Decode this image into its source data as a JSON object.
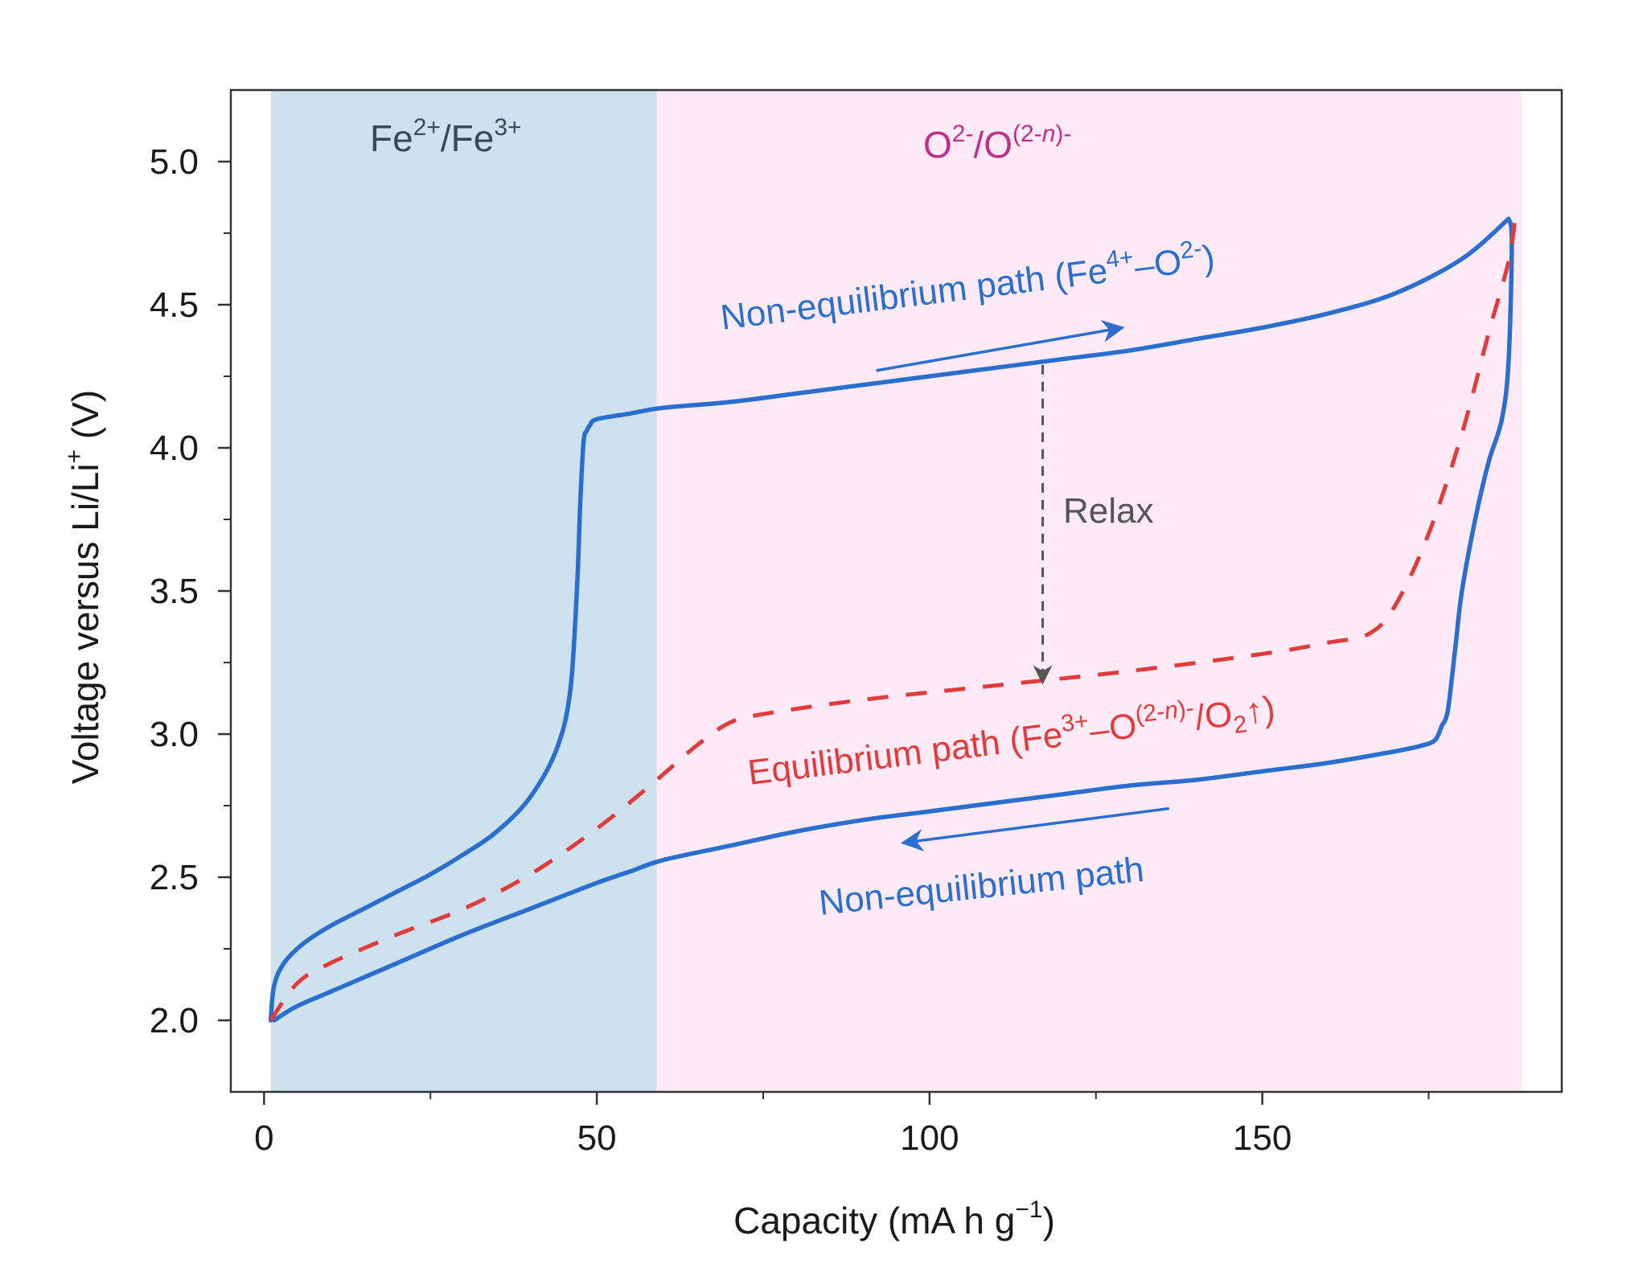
{
  "chart_data": {
    "type": "line",
    "xlabel": {
      "main": "Capacity (mA h g",
      "sup": "−1",
      "end": ")"
    },
    "ylabel": {
      "main": "Voltage versus Li/Li",
      "sup": "+",
      "end": " (V)"
    },
    "xlim": [
      -5,
      195
    ],
    "ylim": [
      1.75,
      5.25
    ],
    "x_ticks": [
      0,
      50,
      100,
      150
    ],
    "x_tick_labels": [
      "0",
      "50",
      "100",
      "150"
    ],
    "x_minor_ticks": [
      25,
      75,
      125,
      175
    ],
    "y_ticks": [
      2.0,
      2.5,
      3.0,
      3.5,
      4.0,
      4.5,
      5.0
    ],
    "y_tick_labels": [
      "2.0",
      "2.5",
      "3.0",
      "3.5",
      "4.0",
      "4.5",
      "5.0"
    ],
    "y_minor_ticks": [
      2.25,
      2.75,
      3.25,
      3.75,
      4.25,
      4.75
    ],
    "regions": [
      {
        "name": "fe-region",
        "x_start": 1,
        "x_end": 59,
        "color": "#cde1ee",
        "label_parts": [
          "Fe",
          "2+",
          "/Fe",
          "3+"
        ],
        "label_color": "#3a4a5a"
      },
      {
        "name": "o-region",
        "x_start": 59,
        "x_end": 189,
        "color": "#fdeaf6",
        "label_parts": [
          "O",
          "2-",
          "/O",
          "(2-",
          "n",
          ")-"
        ],
        "label_color": "#c0308a"
      }
    ],
    "series": [
      {
        "name": "Non-equilibrium path (charge)",
        "style": "solid",
        "color": "#2a6fd0",
        "x": [
          1,
          1.5,
          3,
          6,
          10,
          15,
          20,
          25,
          30,
          35,
          40,
          44,
          46,
          47,
          47.5,
          48,
          48.5,
          49,
          50,
          55,
          60,
          70,
          80,
          90,
          100,
          110,
          120,
          130,
          140,
          150,
          160,
          170,
          180,
          187
        ],
        "y": [
          2.0,
          2.12,
          2.2,
          2.27,
          2.33,
          2.39,
          2.45,
          2.51,
          2.58,
          2.66,
          2.78,
          2.95,
          3.15,
          3.5,
          3.8,
          4.02,
          4.06,
          4.08,
          4.1,
          4.12,
          4.14,
          4.16,
          4.19,
          4.22,
          4.25,
          4.28,
          4.31,
          4.34,
          4.38,
          4.42,
          4.47,
          4.54,
          4.66,
          4.8
        ]
      },
      {
        "name": "Non-equilibrium path (discharge)",
        "style": "solid",
        "color": "#2a6fd0",
        "x": [
          187,
          187.5,
          187,
          186,
          184,
          182,
          180,
          179,
          178,
          177.5,
          177,
          176,
          174,
          170,
          160,
          150,
          140,
          130,
          120,
          110,
          100,
          90,
          80,
          70,
          60,
          55,
          50,
          40,
          30,
          20,
          10,
          5,
          1.5
        ],
        "y": [
          4.8,
          4.72,
          4.3,
          4.1,
          3.95,
          3.75,
          3.5,
          3.3,
          3.1,
          3.05,
          3.03,
          2.98,
          2.96,
          2.94,
          2.9,
          2.87,
          2.84,
          2.82,
          2.79,
          2.76,
          2.73,
          2.7,
          2.66,
          2.61,
          2.56,
          2.52,
          2.48,
          2.39,
          2.3,
          2.2,
          2.1,
          2.05,
          2.0
        ]
      },
      {
        "name": "Equilibrium path",
        "style": "dashed",
        "color": "#e23b3b",
        "x": [
          1,
          5,
          10,
          20,
          30,
          40,
          50,
          58,
          65,
          70,
          75,
          90,
          110,
          130,
          150,
          160,
          166,
          170,
          175,
          180,
          184,
          187,
          188
        ],
        "y": [
          2.0,
          2.13,
          2.2,
          2.3,
          2.39,
          2.51,
          2.67,
          2.82,
          2.96,
          3.04,
          3.07,
          3.12,
          3.17,
          3.22,
          3.28,
          3.32,
          3.35,
          3.45,
          3.7,
          4.05,
          4.4,
          4.65,
          4.8
        ]
      }
    ],
    "relax_arrow": {
      "x": 117,
      "y_from": 4.29,
      "y_to": 3.18,
      "color": "#555555",
      "label": "Relax"
    },
    "annotations": [
      {
        "name": "charge-path-label",
        "text_parts": [
          "Non-equilibrium path (Fe",
          "4+",
          "–O",
          "2-",
          ")"
        ],
        "color": "#2a6fd0"
      },
      {
        "name": "equilibrium-path-label",
        "text_parts": [
          "Equilibrium path (Fe",
          "3+",
          "–O",
          "(2-",
          "n",
          ")-",
          "/O",
          "2",
          "↑)"
        ],
        "color": "#e23b3b"
      },
      {
        "name": "discharge-path-label",
        "text_parts": [
          "Non-equilibrium path"
        ],
        "color": "#2a6fd0"
      }
    ],
    "direction_arrows": [
      {
        "name": "charge-direction-arrow",
        "from": [
          92,
          4.27
        ],
        "to": [
          129,
          4.42
        ],
        "color": "#2a6fd0"
      },
      {
        "name": "discharge-direction-arrow",
        "from": [
          136,
          2.74
        ],
        "to": [
          96,
          2.62
        ],
        "color": "#2a6fd0"
      }
    ]
  }
}
